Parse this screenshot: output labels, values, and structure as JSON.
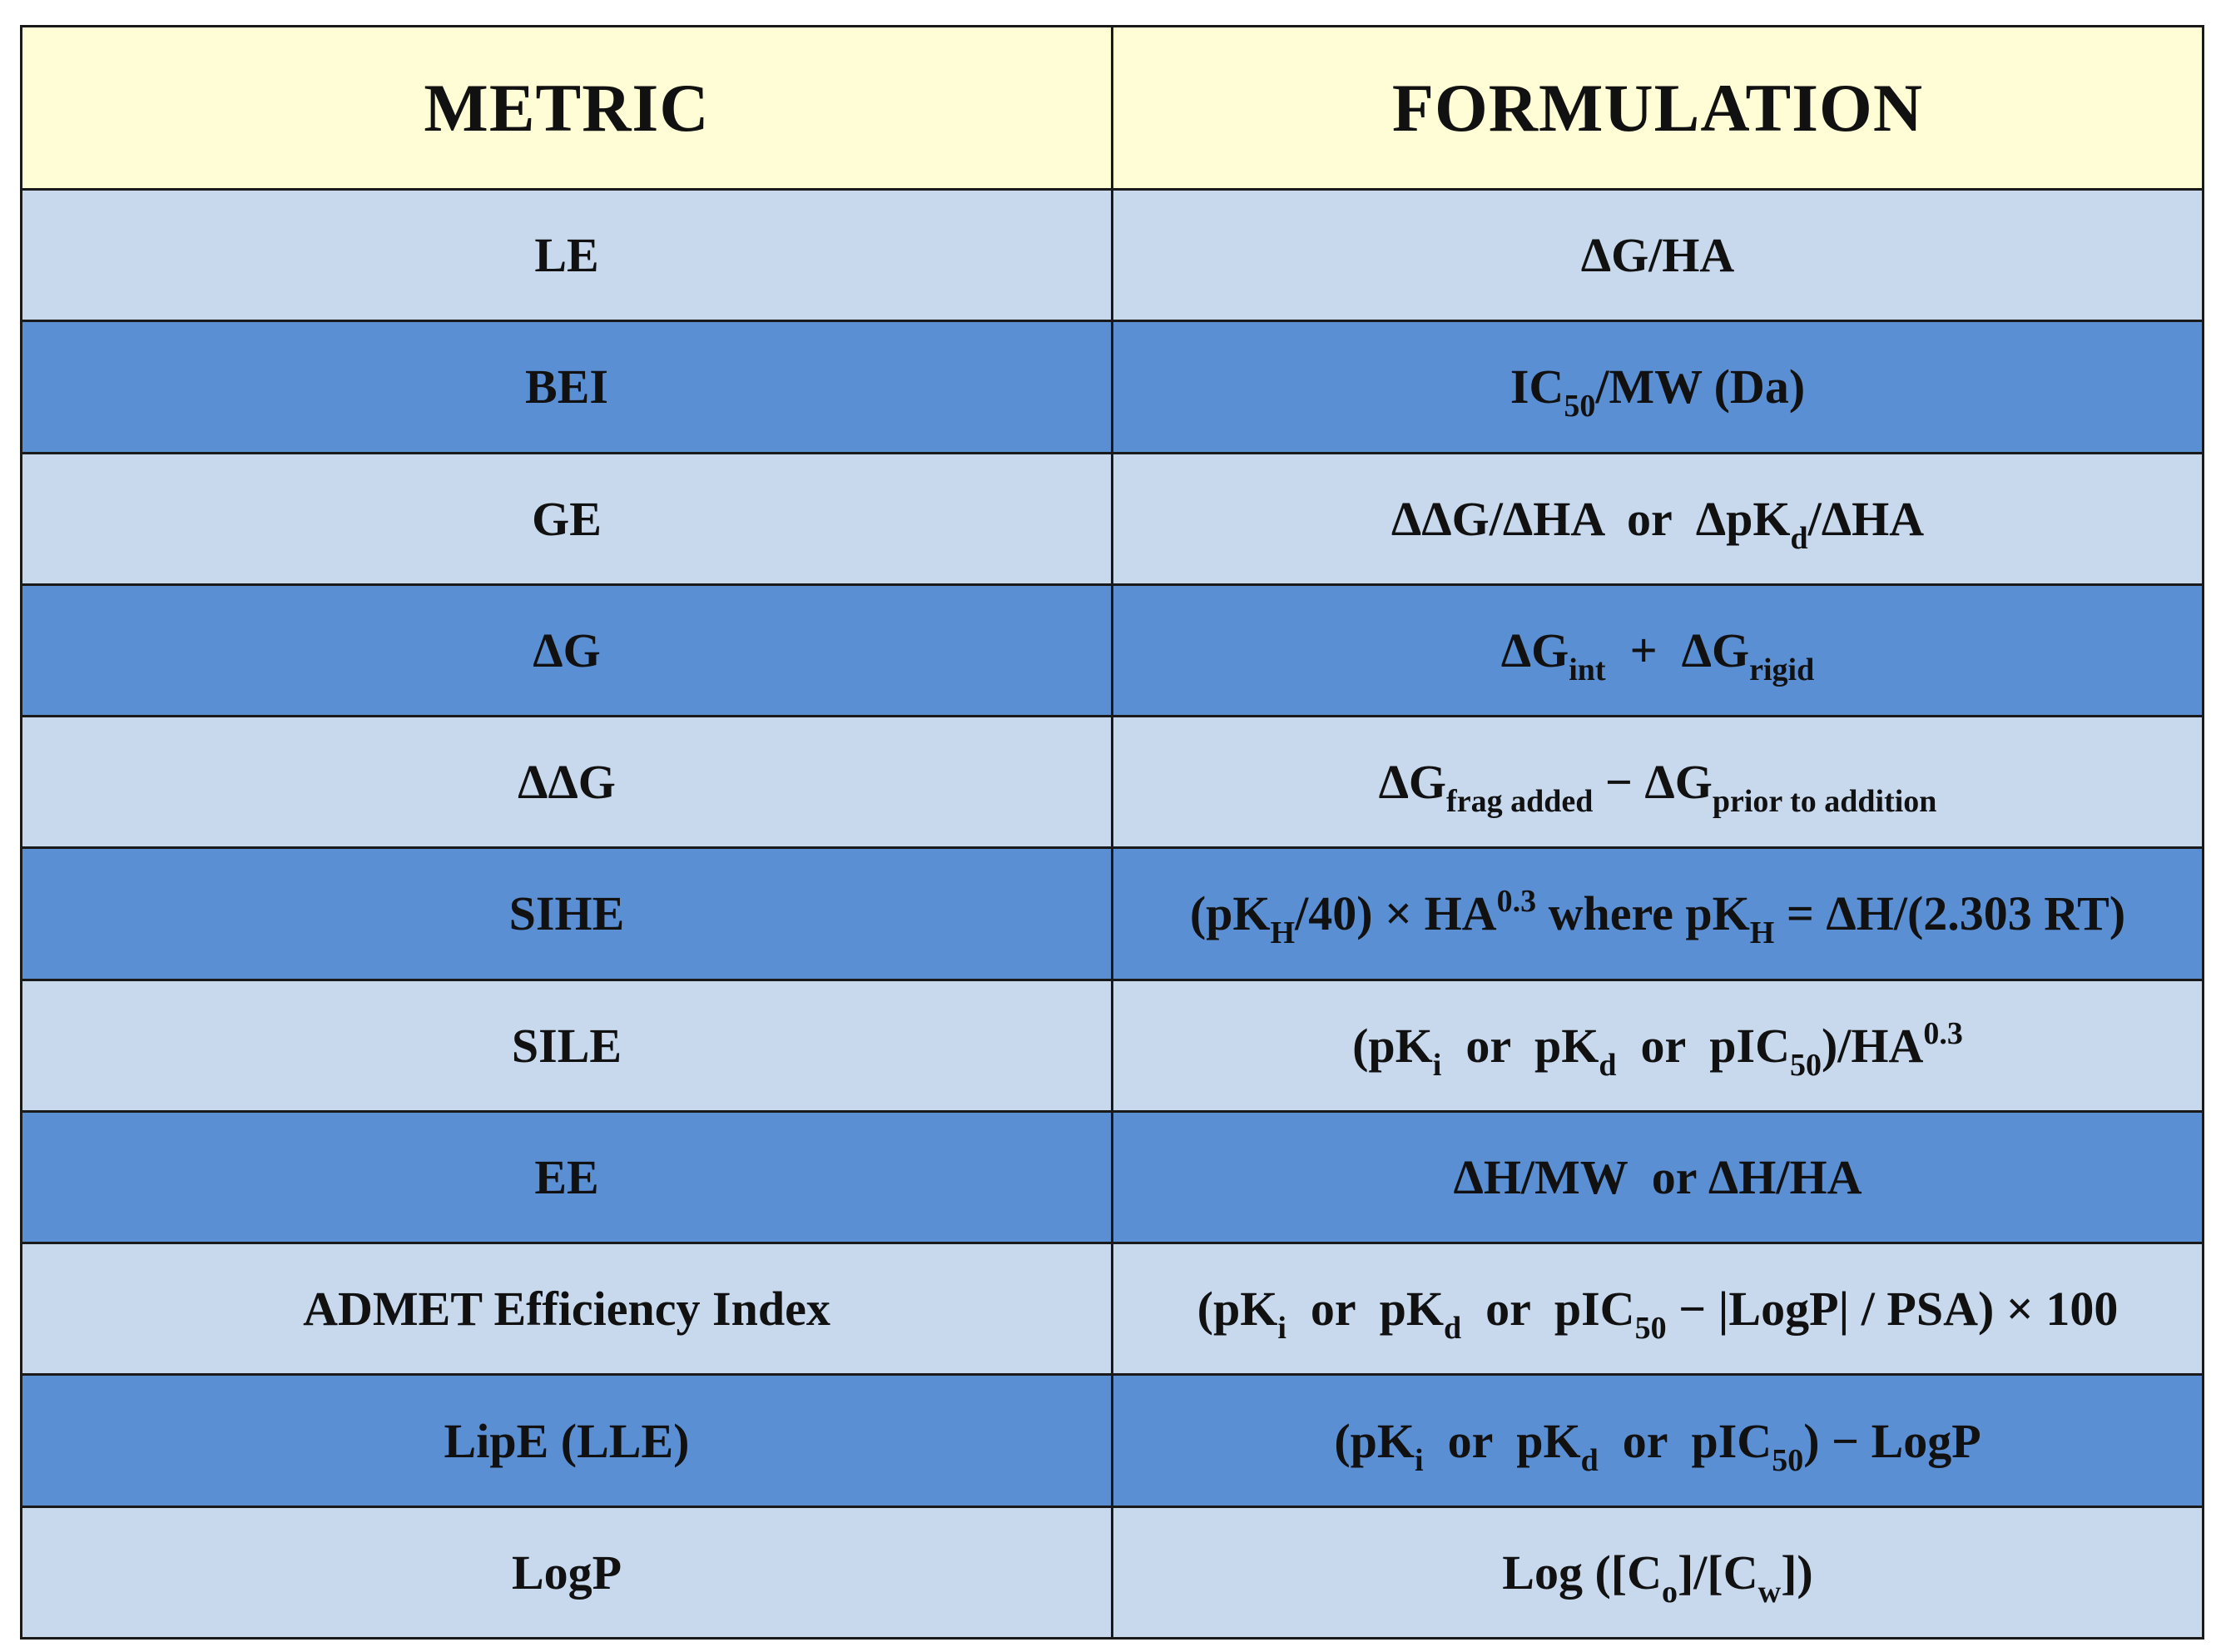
{
  "header": {
    "metric": "METRIC",
    "formulation": "FORMULATION",
    "bg": "#fffdd5"
  },
  "colors": {
    "light_row": "#c8d9ee",
    "dark_row": "#5b8fd4",
    "border": "#1a1a1a"
  },
  "rows": [
    {
      "metric": "LE",
      "formula": [
        {
          "t": "ΔG/HA"
        }
      ]
    },
    {
      "metric": "BEI",
      "formula": [
        {
          "t": "IC"
        },
        {
          "sub": "50"
        },
        {
          "t": "/MW (Da)"
        }
      ]
    },
    {
      "metric": "GE",
      "formula": [
        {
          "t": "ΔΔG/ΔHA  or  ΔpK"
        },
        {
          "sub": "d"
        },
        {
          "t": "/ΔHA"
        }
      ]
    },
    {
      "metric": "ΔG",
      "formula": [
        {
          "t": "ΔG"
        },
        {
          "sub": "int"
        },
        {
          "t": "  +  ΔG"
        },
        {
          "sub": "rigid"
        }
      ]
    },
    {
      "metric": "ΔΔG",
      "formula": [
        {
          "t": "ΔG"
        },
        {
          "sub": "frag added"
        },
        {
          "t": " − ΔG"
        },
        {
          "sub": "prior to addition"
        }
      ]
    },
    {
      "metric": "SIHE",
      "formula": [
        {
          "t": "(pK"
        },
        {
          "sub": "H"
        },
        {
          "t": "/40) × HA"
        },
        {
          "sup": "0.3"
        },
        {
          "t": " where pK"
        },
        {
          "sub": "H"
        },
        {
          "t": " = ΔH/(2.303 RT)"
        }
      ]
    },
    {
      "metric": "SILE",
      "formula": [
        {
          "t": "(pK"
        },
        {
          "sub": "i"
        },
        {
          "t": "  or  pK"
        },
        {
          "sub": "d"
        },
        {
          "t": "  or  pIC"
        },
        {
          "sub": "50"
        },
        {
          "t": ")/HA"
        },
        {
          "sup": "0.3"
        }
      ]
    },
    {
      "metric": "EE",
      "formula": [
        {
          "t": "ΔH/MW  or ΔH/HA"
        }
      ]
    },
    {
      "metric": "ADMET Efficiency Index",
      "formula": [
        {
          "t": "(pK"
        },
        {
          "sub": "i"
        },
        {
          "t": "  or  pK"
        },
        {
          "sub": "d"
        },
        {
          "t": "  or  pIC"
        },
        {
          "sub": "50"
        },
        {
          "t": " − |LogP| / PSA) × 100"
        }
      ]
    },
    {
      "metric": "LipE (LLE)",
      "formula": [
        {
          "t": "(pK"
        },
        {
          "sub": "i"
        },
        {
          "t": "  or  pK"
        },
        {
          "sub": "d"
        },
        {
          "t": "  or  pIC"
        },
        {
          "sub": "50"
        },
        {
          "t": ") − LogP"
        }
      ]
    },
    {
      "metric": "LogP",
      "formula": [
        {
          "t": "Log ([C"
        },
        {
          "sub": "o"
        },
        {
          "t": "]/[C"
        },
        {
          "sub": "w"
        },
        {
          "t": "])"
        }
      ]
    }
  ]
}
